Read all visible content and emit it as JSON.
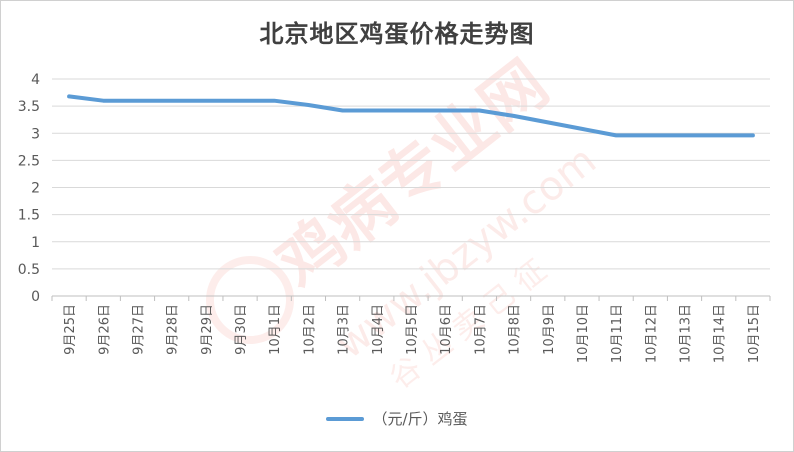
{
  "chart_data": {
    "type": "line",
    "title": "北京地区鸡蛋价格走势图",
    "xlabel": "",
    "ylabel": "",
    "categories": [
      "9月25日",
      "9月26日",
      "9月27日",
      "9月28日",
      "9月29日",
      "9月30日",
      "10月1日",
      "10月2日",
      "10月3日",
      "10月4日",
      "10月5日",
      "10月6日",
      "10月7日",
      "10月8日",
      "10月9日",
      "10月10日",
      "10月11日",
      "10月12日",
      "10月13日",
      "10月14日",
      "10月15日"
    ],
    "series": [
      {
        "name": "（元/斤）鸡蛋",
        "values": [
          3.68,
          3.6,
          3.6,
          3.6,
          3.6,
          3.6,
          3.6,
          3.52,
          3.42,
          3.42,
          3.42,
          3.42,
          3.42,
          3.32,
          3.2,
          3.08,
          2.96,
          2.96,
          2.96,
          2.96,
          2.96
        ],
        "color": "#5b9bd5"
      }
    ],
    "ylim": [
      0,
      4
    ],
    "yticks": [
      "0",
      "0.5",
      "1",
      "1.5",
      "2",
      "2.5",
      "3",
      "3.5",
      "4"
    ],
    "grid": true,
    "legend_position": "bottom"
  },
  "watermark": {
    "text_main": "鸡病专业网",
    "text_url": "www.jbzyw.com",
    "text_sign": "谷 丛 卖 己 征",
    "color": "#e84a3a"
  }
}
